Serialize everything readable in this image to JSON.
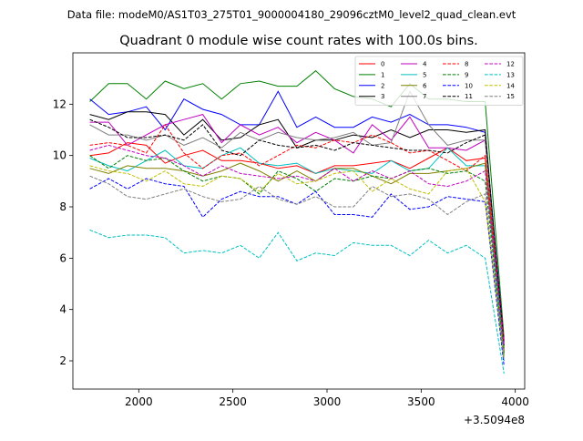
{
  "chart_data": {
    "type": "line",
    "suptitle": "Data file: modeM0/AS1T03_275T01_9000004180_29096cztM0_level2_quad_clean.evt",
    "title": "Quadrant 0 module wise count rates with 100.0s bins.",
    "xlabel": "",
    "ylabel": "",
    "offset_text": "+3.5094e8",
    "xlim": [
      1650,
      4050
    ],
    "ylim": [
      0.9,
      14.0
    ],
    "xticks": [
      2000,
      2500,
      3000,
      3500,
      4000
    ],
    "yticks": [
      2,
      4,
      6,
      8,
      10,
      12
    ],
    "legend_position": "upper right",
    "legend_columns": 4,
    "x": [
      1740,
      1840,
      1940,
      2040,
      2140,
      2240,
      2340,
      2440,
      2540,
      2640,
      2740,
      2840,
      2940,
      3040,
      3140,
      3240,
      3340,
      3440,
      3540,
      3640,
      3740,
      3840,
      3940
    ],
    "series": [
      {
        "name": "0",
        "color": "#ff0000",
        "dash": "solid",
        "values": [
          10.0,
          10.1,
          10.5,
          10.4,
          9.7,
          10.0,
          10.2,
          9.8,
          9.8,
          9.7,
          9.5,
          9.6,
          9.3,
          9.6,
          9.6,
          9.7,
          9.8,
          9.5,
          9.9,
          10.3,
          9.8,
          9.9,
          2.5
        ]
      },
      {
        "name": "1",
        "color": "#008000",
        "dash": "solid",
        "values": [
          12.1,
          12.8,
          12.8,
          12.2,
          12.9,
          12.6,
          12.8,
          12.2,
          12.8,
          12.9,
          12.7,
          12.7,
          13.3,
          12.6,
          12.3,
          12.2,
          11.9,
          12.8,
          12.2,
          12.2,
          12.1,
          12.1,
          2.9
        ]
      },
      {
        "name": "2",
        "color": "#0000ff",
        "dash": "solid",
        "values": [
          12.2,
          11.6,
          11.7,
          11.9,
          11.0,
          12.2,
          11.8,
          11.6,
          11.2,
          11.2,
          12.5,
          11.1,
          11.5,
          11.1,
          11.1,
          11.5,
          11.3,
          11.6,
          11.2,
          11.2,
          11.1,
          10.9,
          2.7
        ]
      },
      {
        "name": "3",
        "color": "#000000",
        "dash": "solid",
        "values": [
          11.6,
          11.4,
          11.7,
          11.7,
          11.6,
          10.8,
          11.4,
          10.6,
          10.7,
          11.2,
          11.4,
          10.3,
          10.6,
          10.6,
          10.8,
          10.7,
          11.0,
          10.7,
          11.0,
          11.0,
          10.9,
          11.0,
          2.3
        ]
      },
      {
        "name": "4",
        "color": "#c000c0",
        "dash": "solid",
        "values": [
          11.3,
          11.3,
          10.4,
          10.8,
          11.2,
          11.4,
          11.6,
          10.5,
          11.2,
          10.8,
          11.1,
          10.5,
          10.9,
          10.6,
          10.1,
          11.2,
          10.6,
          11.5,
          10.3,
          10.3,
          10.2,
          10.6,
          2.4
        ]
      },
      {
        "name": "5",
        "color": "#00c0c0",
        "dash": "solid",
        "values": [
          9.9,
          9.6,
          9.4,
          9.8,
          10.2,
          9.6,
          9.5,
          10.0,
          10.3,
          9.7,
          9.6,
          9.7,
          9.3,
          9.5,
          9.4,
          9.3,
          9.8,
          9.4,
          9.5,
          10.3,
          9.6,
          9.6,
          2.0
        ]
      },
      {
        "name": "6",
        "color": "#808000",
        "dash": "solid",
        "values": [
          9.5,
          9.3,
          9.6,
          9.5,
          9.5,
          9.4,
          9.2,
          9.4,
          9.7,
          9.4,
          9.0,
          9.4,
          9.0,
          9.5,
          9.5,
          9.2,
          8.9,
          9.3,
          9.3,
          9.4,
          9.5,
          9.7,
          2.5
        ]
      },
      {
        "name": "7",
        "color": "#808080",
        "dash": "solid",
        "values": [
          11.2,
          10.8,
          10.8,
          10.6,
          10.8,
          10.4,
          10.7,
          10.3,
          10.9,
          10.6,
          10.9,
          10.7,
          10.6,
          10.7,
          10.9,
          10.4,
          10.5,
          12.5,
          11.2,
          10.4,
          10.6,
          10.6,
          2.2
        ]
      },
      {
        "name": "8",
        "color": "#ff0000",
        "dash": "dashed",
        "values": [
          10.4,
          10.5,
          10.4,
          10.1,
          11.2,
          10.1,
          9.5,
          10.0,
          10.1,
          9.6,
          10.0,
          10.4,
          10.3,
          10.6,
          10.5,
          10.8,
          10.5,
          10.1,
          10.2,
          9.8,
          9.4,
          10.0,
          2.8
        ]
      },
      {
        "name": "9",
        "color": "#008000",
        "dash": "dashed",
        "values": [
          10.0,
          9.5,
          10.0,
          9.8,
          9.9,
          9.4,
          9.0,
          9.2,
          9.1,
          8.5,
          9.4,
          9.1,
          8.6,
          9.1,
          9.0,
          9.2,
          9.1,
          9.4,
          9.5,
          9.3,
          9.4,
          9.0,
          2.2
        ]
      },
      {
        "name": "10",
        "color": "#0000ff",
        "dash": "dashed",
        "values": [
          8.7,
          9.1,
          8.7,
          9.1,
          8.9,
          8.8,
          7.6,
          8.3,
          8.6,
          8.4,
          8.4,
          8.1,
          8.6,
          7.7,
          7.7,
          7.6,
          8.5,
          7.9,
          8.0,
          8.4,
          8.3,
          8.2,
          1.8
        ]
      },
      {
        "name": "11",
        "color": "#000000",
        "dash": "dashed",
        "values": [
          11.4,
          11.1,
          10.7,
          10.7,
          10.8,
          10.6,
          11.2,
          10.2,
          10.0,
          10.6,
          10.4,
          10.3,
          10.4,
          10.2,
          10.5,
          10.4,
          10.3,
          10.2,
          10.2,
          10.1,
          10.5,
          10.8,
          2.6
        ]
      },
      {
        "name": "12",
        "color": "#c000c0",
        "dash": "dashed",
        "values": [
          10.2,
          10.4,
          10.2,
          10.0,
          9.9,
          9.6,
          9.2,
          9.6,
          9.3,
          9.2,
          9.1,
          9.2,
          9.0,
          9.5,
          9.0,
          9.4,
          9.1,
          9.4,
          8.9,
          8.8,
          9.0,
          9.4,
          2.6
        ]
      },
      {
        "name": "13",
        "color": "#00c0c0",
        "dash": "dashed",
        "values": [
          7.1,
          6.8,
          6.9,
          6.9,
          6.8,
          6.2,
          6.3,
          6.2,
          6.5,
          6.0,
          7.0,
          5.9,
          6.2,
          6.1,
          6.6,
          6.5,
          6.5,
          6.1,
          6.7,
          6.2,
          6.5,
          6.0,
          1.5
        ]
      },
      {
        "name": "14",
        "color": "#c0c000",
        "dash": "dashed",
        "values": [
          9.6,
          9.4,
          9.3,
          9.0,
          9.4,
          8.9,
          8.8,
          9.2,
          9.1,
          8.6,
          9.3,
          8.9,
          9.0,
          9.3,
          9.4,
          8.6,
          9.1,
          8.7,
          8.5,
          9.4,
          9.5,
          8.2,
          2.1
        ]
      },
      {
        "name": "15",
        "color": "#808080",
        "dash": "dashed",
        "values": [
          9.2,
          8.9,
          8.4,
          8.3,
          8.5,
          8.7,
          8.4,
          8.2,
          8.3,
          8.8,
          8.3,
          8.1,
          8.4,
          8.0,
          8.0,
          8.8,
          8.4,
          8.5,
          8.3,
          7.7,
          8.2,
          8.5,
          2.0
        ]
      }
    ]
  }
}
